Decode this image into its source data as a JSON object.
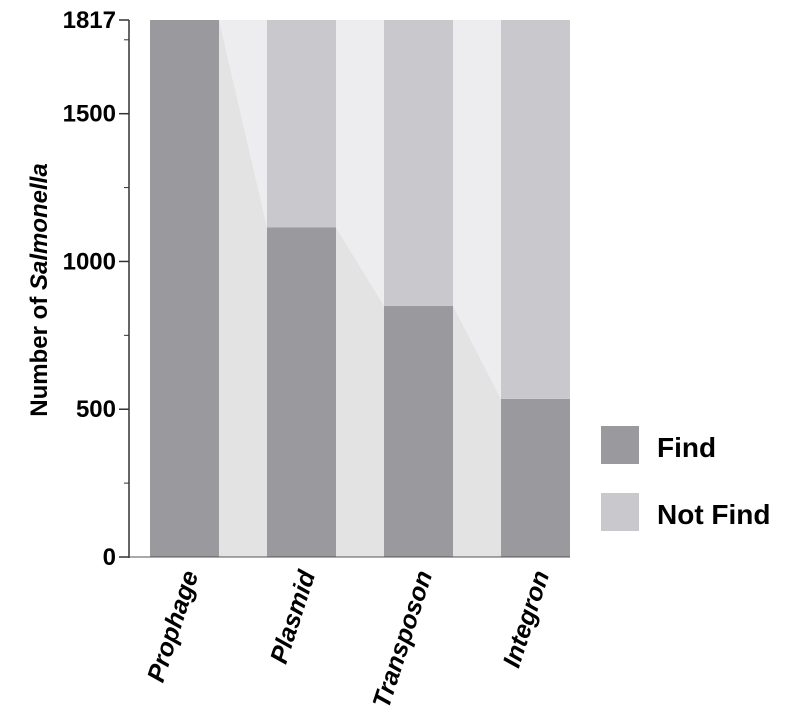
{
  "chart_data": {
    "type": "bar",
    "stacked": true,
    "categories": [
      "Prophage",
      "Plasmid",
      "Transposon",
      "Integron"
    ],
    "series": [
      {
        "name": "Find",
        "values": [
          1817,
          1115,
          850,
          535
        ],
        "color": "#99999e"
      },
      {
        "name": "Not Find",
        "values": [
          0,
          702,
          967,
          1282
        ],
        "color": "#c9c9cd"
      }
    ],
    "connector_color": "#e3e3e3",
    "connector_top_color": "#ededf0",
    "ylabel_prefix": "Number of ",
    "ylabel_italic": "Salmonella",
    "ylim": [
      0,
      1817
    ],
    "yticks": [
      0,
      500,
      1000,
      1500,
      1817
    ],
    "legend": {
      "position": "right",
      "entries": [
        "Find",
        "Not Find"
      ]
    },
    "grid": false
  }
}
